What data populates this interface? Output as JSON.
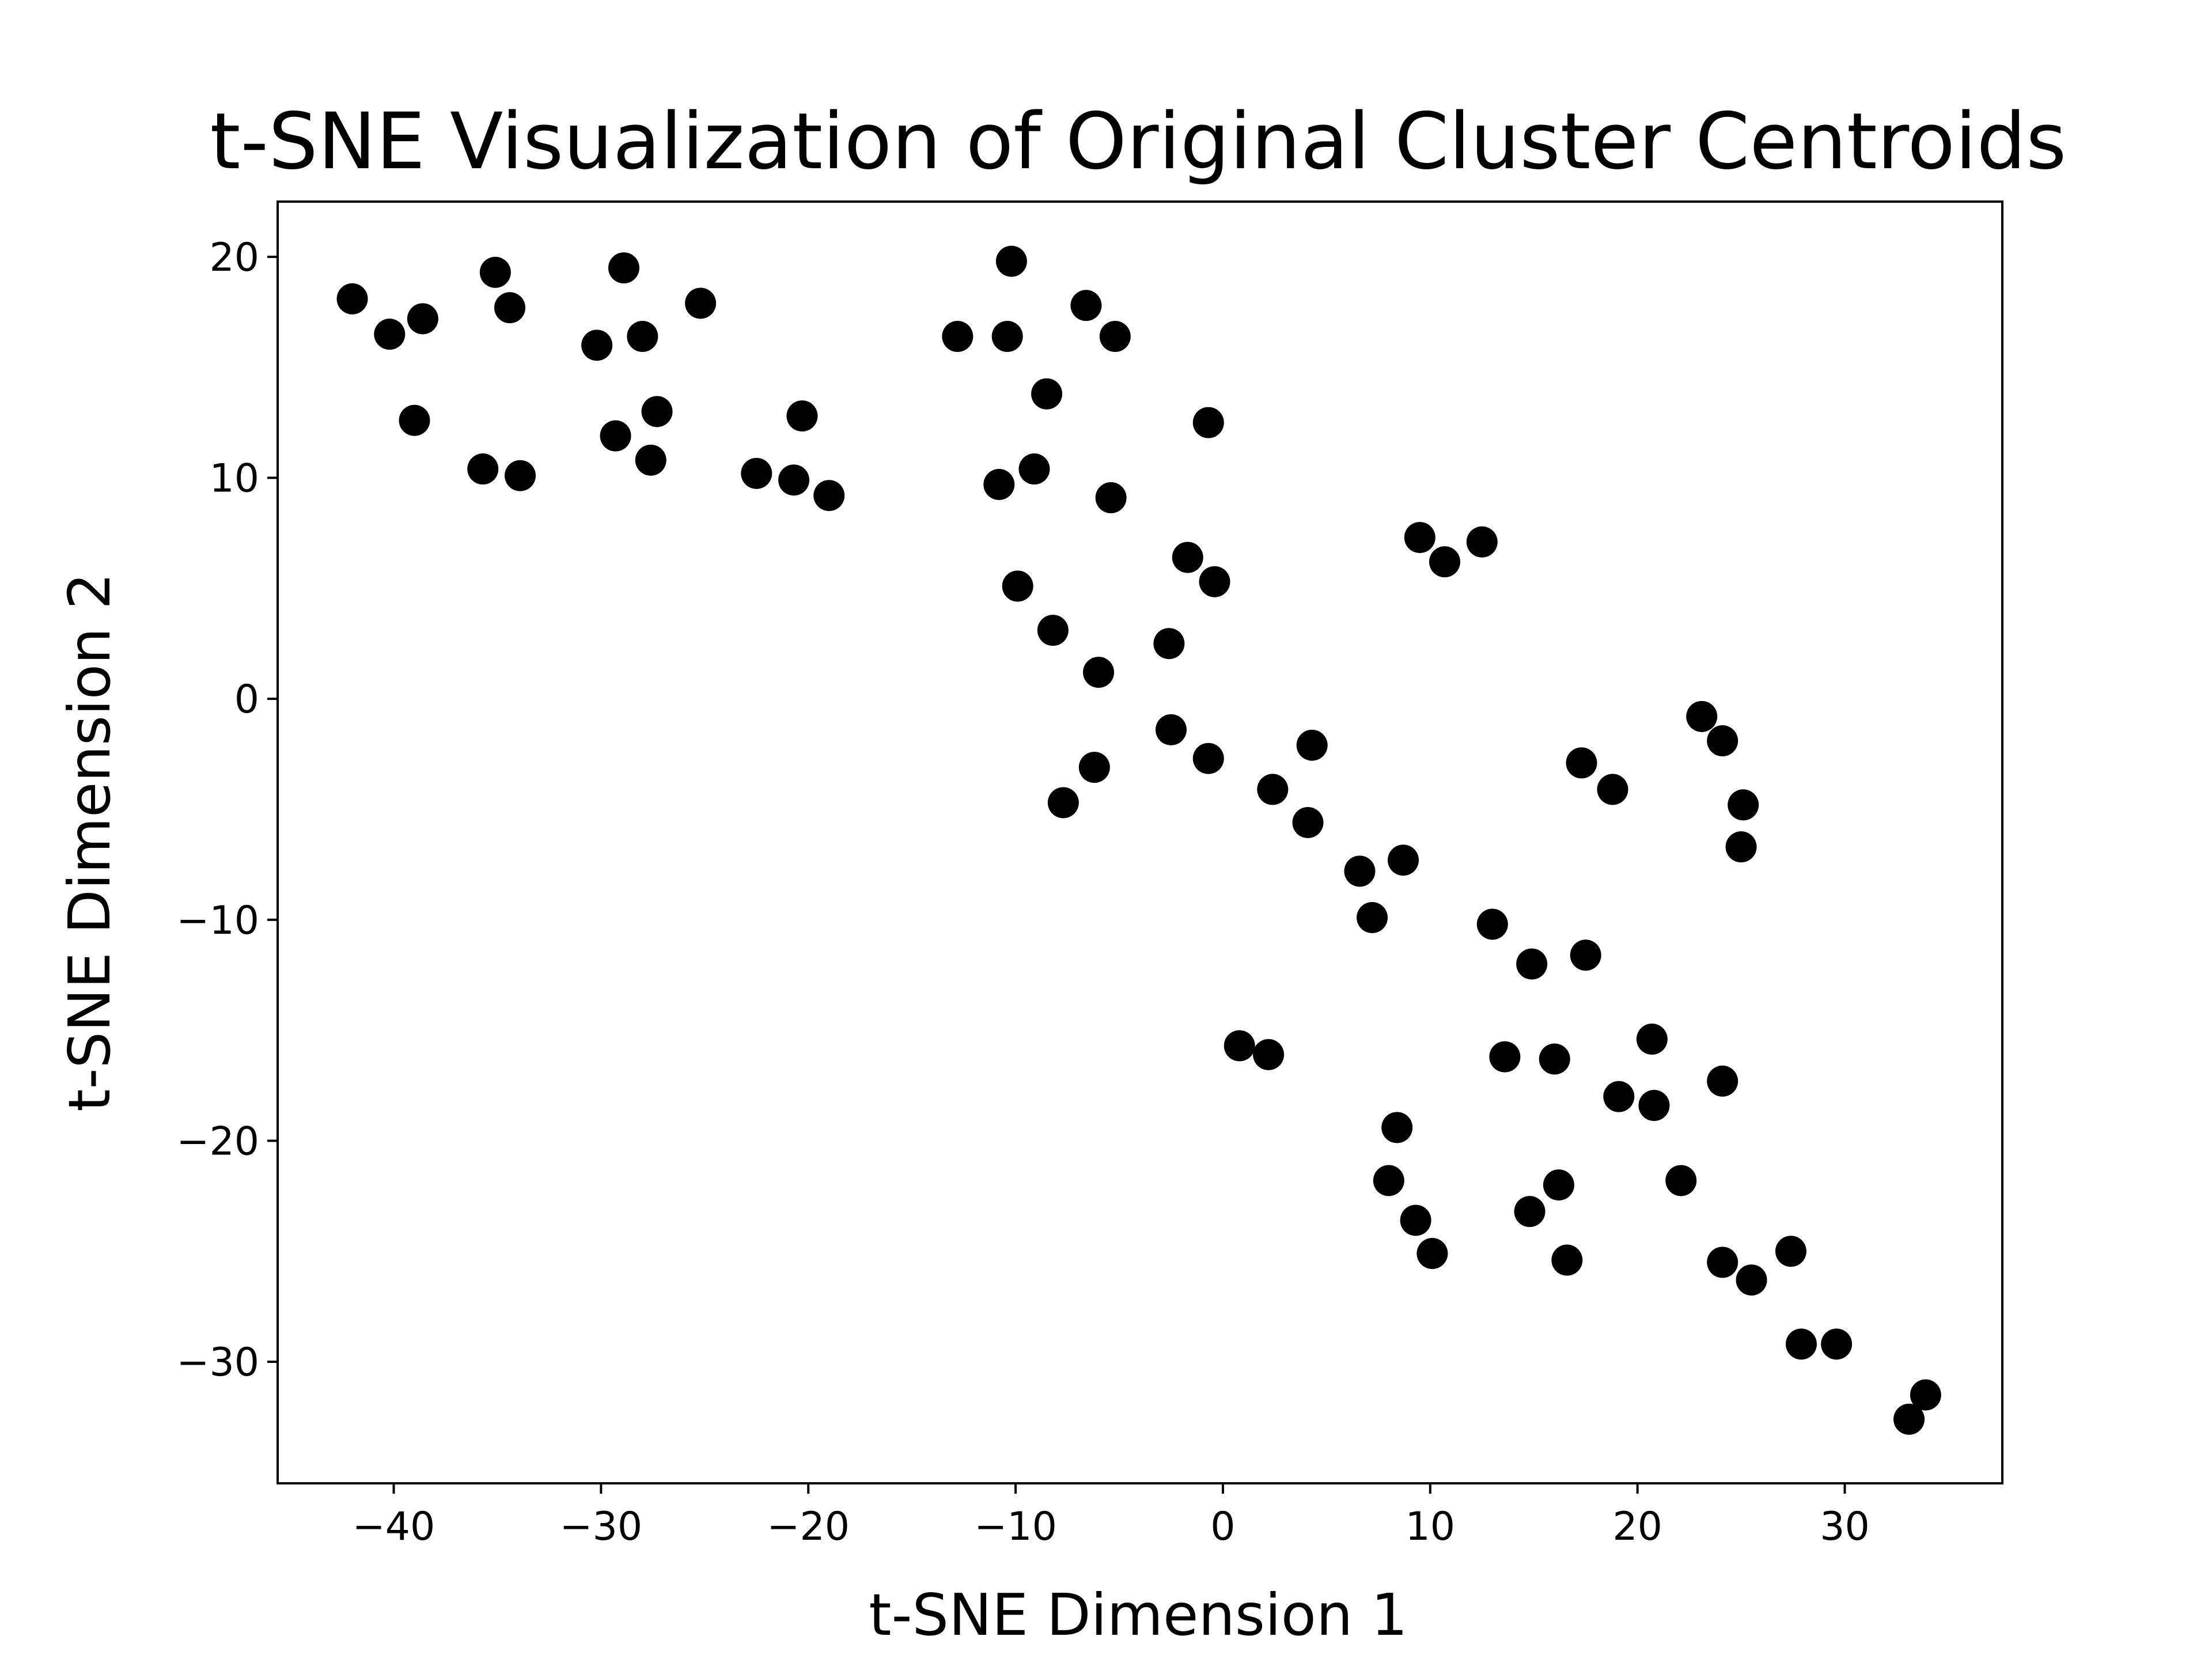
{
  "chart_data": {
    "type": "scatter",
    "title": "t-SNE Visualization of Original Cluster Centroids",
    "xlabel": "t-SNE Dimension 1",
    "ylabel": "t-SNE Dimension 2",
    "xlim": [
      -45.6,
      37.6
    ],
    "ylim": [
      -35.5,
      22.5
    ],
    "xticks": [
      -40,
      -30,
      -20,
      -10,
      0,
      10,
      20,
      30
    ],
    "yticks": [
      -30,
      -20,
      -10,
      0,
      10,
      20
    ],
    "xtick_labels": [
      "−40",
      "−30",
      "−20",
      "−10",
      "0",
      "10",
      "20",
      "30"
    ],
    "ytick_labels": [
      "−30",
      "−20",
      "−10",
      "0",
      "10",
      "20"
    ],
    "grid": false,
    "marker_color": "#000000",
    "points": [
      [
        -42.0,
        18.1
      ],
      [
        -40.2,
        16.5
      ],
      [
        -39.0,
        12.6
      ],
      [
        -38.6,
        17.2
      ],
      [
        -35.7,
        10.4
      ],
      [
        -35.1,
        19.3
      ],
      [
        -34.4,
        17.7
      ],
      [
        -33.9,
        10.1
      ],
      [
        -30.2,
        16.0
      ],
      [
        -29.3,
        11.9
      ],
      [
        -28.9,
        19.5
      ],
      [
        -28.0,
        16.4
      ],
      [
        -27.6,
        10.8
      ],
      [
        -27.3,
        13.0
      ],
      [
        -25.2,
        17.9
      ],
      [
        -22.5,
        10.2
      ],
      [
        -20.7,
        9.9
      ],
      [
        -20.3,
        12.8
      ],
      [
        -19.0,
        9.2
      ],
      [
        -12.8,
        16.4
      ],
      [
        -10.8,
        9.7
      ],
      [
        -10.4,
        16.4
      ],
      [
        -10.2,
        19.8
      ],
      [
        -9.9,
        5.1
      ],
      [
        -9.1,
        10.4
      ],
      [
        -8.5,
        13.8
      ],
      [
        -8.2,
        3.1
      ],
      [
        -7.7,
        -4.7
      ],
      [
        -6.6,
        17.8
      ],
      [
        -6.2,
        -3.1
      ],
      [
        -6.0,
        1.2
      ],
      [
        -5.4,
        9.1
      ],
      [
        -5.2,
        16.4
      ],
      [
        -2.6,
        2.5
      ],
      [
        -2.5,
        -1.4
      ],
      [
        -1.7,
        6.4
      ],
      [
        -0.7,
        12.5
      ],
      [
        -0.7,
        -2.7
      ],
      [
        -0.4,
        5.3
      ],
      [
        0.8,
        -15.7
      ],
      [
        2.2,
        -16.1
      ],
      [
        2.4,
        -4.1
      ],
      [
        4.1,
        -5.6
      ],
      [
        4.3,
        -2.1
      ],
      [
        6.6,
        -7.8
      ],
      [
        7.2,
        -9.9
      ],
      [
        8.0,
        -21.8
      ],
      [
        8.4,
        -19.4
      ],
      [
        8.7,
        -7.3
      ],
      [
        9.3,
        -23.6
      ],
      [
        9.5,
        7.3
      ],
      [
        10.1,
        -25.1
      ],
      [
        10.7,
        6.2
      ],
      [
        12.5,
        7.1
      ],
      [
        13.0,
        -10.2
      ],
      [
        13.6,
        -16.2
      ],
      [
        14.8,
        -23.2
      ],
      [
        14.9,
        -12.0
      ],
      [
        16.0,
        -16.3
      ],
      [
        16.2,
        -22.0
      ],
      [
        16.6,
        -25.4
      ],
      [
        17.3,
        -2.9
      ],
      [
        17.5,
        -11.6
      ],
      [
        18.8,
        -4.1
      ],
      [
        19.1,
        -18.0
      ],
      [
        20.7,
        -15.4
      ],
      [
        20.8,
        -18.4
      ],
      [
        22.1,
        -21.8
      ],
      [
        23.1,
        -0.8
      ],
      [
        24.1,
        -1.9
      ],
      [
        24.1,
        -17.3
      ],
      [
        24.1,
        -25.5
      ],
      [
        25.0,
        -6.7
      ],
      [
        25.1,
        -4.8
      ],
      [
        25.5,
        -26.3
      ],
      [
        27.4,
        -25.0
      ],
      [
        27.9,
        -29.2
      ],
      [
        29.6,
        -29.2
      ],
      [
        33.1,
        -32.6
      ],
      [
        33.9,
        -31.5
      ]
    ]
  }
}
